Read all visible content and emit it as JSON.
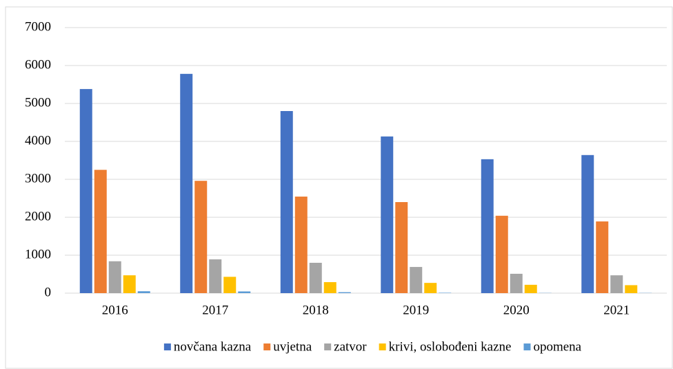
{
  "chart_data": {
    "type": "bar",
    "categories": [
      "2016",
      "2017",
      "2018",
      "2019",
      "2020",
      "2021"
    ],
    "series": [
      {
        "name": "novčana kazna",
        "color": "#4472c4",
        "values": [
          5380,
          5780,
          4800,
          4130,
          3530,
          3640
        ]
      },
      {
        "name": "uvjetna",
        "color": "#ed7d31",
        "values": [
          3250,
          2960,
          2545,
          2400,
          2040,
          1890
        ]
      },
      {
        "name": "zatvor",
        "color": "#a5a5a5",
        "values": [
          840,
          890,
          800,
          690,
          510,
          470
        ]
      },
      {
        "name": "krivi, oslobođeni kazne",
        "color": "#ffc000",
        "values": [
          470,
          430,
          290,
          270,
          220,
          210
        ]
      },
      {
        "name": "opomena",
        "color": "#5b9bd5",
        "values": [
          50,
          45,
          25,
          10,
          5,
          5
        ]
      }
    ],
    "ylim": [
      0,
      7000
    ],
    "yticks": [
      0,
      1000,
      2000,
      3000,
      4000,
      5000,
      6000,
      7000
    ],
    "grid": true,
    "legend": "bottom"
  }
}
